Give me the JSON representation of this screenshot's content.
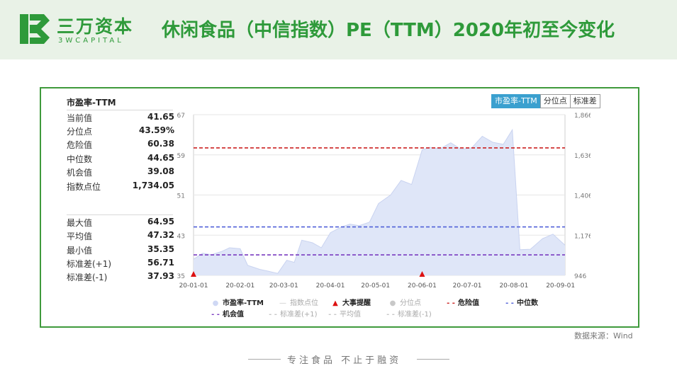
{
  "header": {
    "brand": "三万资本",
    "brand_en": "3WCAPITAL",
    "title": "休闲食品（中信指数）PE（TTM）2020年初至今变化"
  },
  "stats": {
    "title": "市盈率-TTM",
    "group1": [
      {
        "label": "当前值",
        "value": "41.65"
      },
      {
        "label": "分位点",
        "value": "43.59%"
      },
      {
        "label": "危险值",
        "value": "60.38"
      },
      {
        "label": "中位数",
        "value": "44.65"
      },
      {
        "label": "机会值",
        "value": "39.08"
      },
      {
        "label": "指数点位",
        "value": "1,734.05"
      }
    ],
    "group2": [
      {
        "label": "最大值",
        "value": "64.95"
      },
      {
        "label": "平均值",
        "value": "47.32"
      },
      {
        "label": "最小值",
        "value": "35.35"
      },
      {
        "label": "标准差(+1)",
        "value": "56.71"
      },
      {
        "label": "标准差(-1)",
        "value": "37.93"
      }
    ]
  },
  "tabs": [
    {
      "label": "市盈率-TTM",
      "active": true
    },
    {
      "label": "分位点",
      "active": false
    },
    {
      "label": "标准差",
      "active": false
    }
  ],
  "chart_data": {
    "type": "area",
    "left_axis": {
      "range": [
        35,
        67
      ],
      "ticks": [
        "67",
        "59",
        "51",
        "43",
        "35"
      ]
    },
    "right_axis": {
      "range": [
        946,
        1866
      ],
      "ticks": [
        "1,866",
        "1,636",
        "1,406",
        "1,176",
        "946"
      ]
    },
    "x_ticks": [
      "20-01-01",
      "20-02-01",
      "20-03-01",
      "20-04-01",
      "20-05-01",
      "20-06-01",
      "20-07-01",
      "20-08-01",
      "20-09-01"
    ],
    "series": [
      {
        "values": [
          [
            "2020-01-01",
            38.2
          ],
          [
            "2020-01-07",
            39.4
          ],
          [
            "2020-01-13",
            39.1
          ],
          [
            "2020-01-20",
            39.8
          ],
          [
            "2020-01-25",
            40.5
          ],
          [
            "2020-02-01",
            40.3
          ],
          [
            "2020-02-06",
            37.0
          ],
          [
            "2020-02-14",
            36.2
          ],
          [
            "2020-02-20",
            35.8
          ],
          [
            "2020-02-26",
            35.4
          ],
          [
            "2020-03-03",
            38.0
          ],
          [
            "2020-03-08",
            37.6
          ],
          [
            "2020-03-13",
            42.0
          ],
          [
            "2020-03-20",
            41.5
          ],
          [
            "2020-03-26",
            40.5
          ],
          [
            "2020-04-01",
            43.5
          ],
          [
            "2020-04-08",
            44.6
          ],
          [
            "2020-04-14",
            45.2
          ],
          [
            "2020-04-20",
            44.9
          ],
          [
            "2020-04-27",
            45.6
          ],
          [
            "2020-05-03",
            49.3
          ],
          [
            "2020-05-11",
            51.0
          ],
          [
            "2020-05-18",
            53.9
          ],
          [
            "2020-05-25",
            53.1
          ],
          [
            "2020-06-01",
            60.0
          ],
          [
            "2020-06-06",
            60.5
          ],
          [
            "2020-06-13",
            60.2
          ],
          [
            "2020-06-20",
            61.4
          ],
          [
            "2020-06-27",
            60.1
          ],
          [
            "2020-07-04",
            60.4
          ],
          [
            "2020-07-11",
            62.7
          ],
          [
            "2020-07-18",
            61.5
          ],
          [
            "2020-07-25",
            61.1
          ],
          [
            "2020-07-31",
            64.0
          ],
          [
            "2020-08-05",
            40.1
          ],
          [
            "2020-08-12",
            40.2
          ],
          [
            "2020-08-20",
            42.3
          ],
          [
            "2020-08-27",
            43.2
          ],
          [
            "2020-09-04",
            41.0
          ]
        ]
      }
    ],
    "reference_lines": [
      {
        "name": "危险值",
        "value": 60.38,
        "color": "#cc2222"
      },
      {
        "name": "中位数",
        "value": 44.65,
        "color": "#5060d8"
      },
      {
        "name": "机会值",
        "value": 39.08,
        "color": "#7a3cc0"
      }
    ],
    "event_markers": [
      "2020-01-01",
      "2020-06-01"
    ],
    "legend": {
      "placement": "bottom",
      "items": [
        {
          "label": "市盈率-TTM",
          "marker": "circle",
          "color": "#cfd8f4",
          "active": true
        },
        {
          "label": "指数点位",
          "marker": "line",
          "color": "#c8c8c8",
          "active": false
        },
        {
          "label": "大事提醒",
          "marker": "triangle",
          "color": "#dd1111",
          "active": true
        },
        {
          "label": "分位点",
          "marker": "circle",
          "color": "#c8c8c8",
          "active": false
        },
        {
          "label": "危险值",
          "marker": "dash",
          "color": "#cc2222",
          "active": true
        },
        {
          "label": "中位数",
          "marker": "dash",
          "color": "#5060d8",
          "active": true
        },
        {
          "label": "机会值",
          "marker": "dash",
          "color": "#7a3cc0",
          "active": true
        },
        {
          "label": "标准差(+1)",
          "marker": "dash",
          "color": "#c8c8c8",
          "active": false
        },
        {
          "label": "平均值",
          "marker": "dash",
          "color": "#c8c8c8",
          "active": false
        },
        {
          "label": "标准差(-1)",
          "marker": "dash",
          "color": "#c8c8c8",
          "active": false
        }
      ]
    }
  },
  "source": "数据来源：Wind",
  "footer": "专注食品  不止于融资",
  "colors": {
    "brand_green": "#2e9a3a",
    "frame_green": "#3f9a3c",
    "header_bg": "#e9f2e7",
    "tab_active": "#3aa0cf",
    "area_fill": "#dfe6f8"
  }
}
